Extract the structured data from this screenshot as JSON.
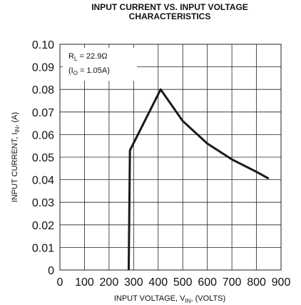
{
  "chart_data": {
    "type": "line",
    "title": [
      "INPUT CURRENT VS. INPUT VOLTAGE",
      "CHARACTERISTICS"
    ],
    "x_label": {
      "text": "INPUT VOLTAGE, V",
      "sub": "IN",
      "rest": ", (VOLTS)"
    },
    "y_label": {
      "text": "INPUT CURRENT, I",
      "sub": "IN",
      "rest": ", (A)"
    },
    "annotations": [
      {
        "text": "R",
        "sub": "L",
        "rest": " = 22.9Ω"
      },
      {
        "text": "(I",
        "sub": "O",
        "rest": " = 1.05A)"
      }
    ],
    "series": [
      {
        "name": null,
        "color": "#1a1a1a",
        "x": [
          280,
          285,
          410,
          500,
          600,
          700,
          800,
          850
        ],
        "values": [
          0,
          0.053,
          0.08,
          0.066,
          0.056,
          0.049,
          0.0435,
          0.0405
        ]
      }
    ],
    "xlim": [
      0,
      900
    ],
    "xticks": [
      0,
      100,
      200,
      300,
      400,
      500,
      600,
      700,
      800,
      900
    ],
    "ylim": [
      0,
      0.1
    ],
    "yticks": [
      0,
      0.01,
      0.02,
      0.03,
      0.04,
      0.05,
      0.06,
      0.07,
      0.08,
      0.09,
      {
        "value": 0.1,
        "label": "0.10"
      }
    ],
    "grid": true
  }
}
